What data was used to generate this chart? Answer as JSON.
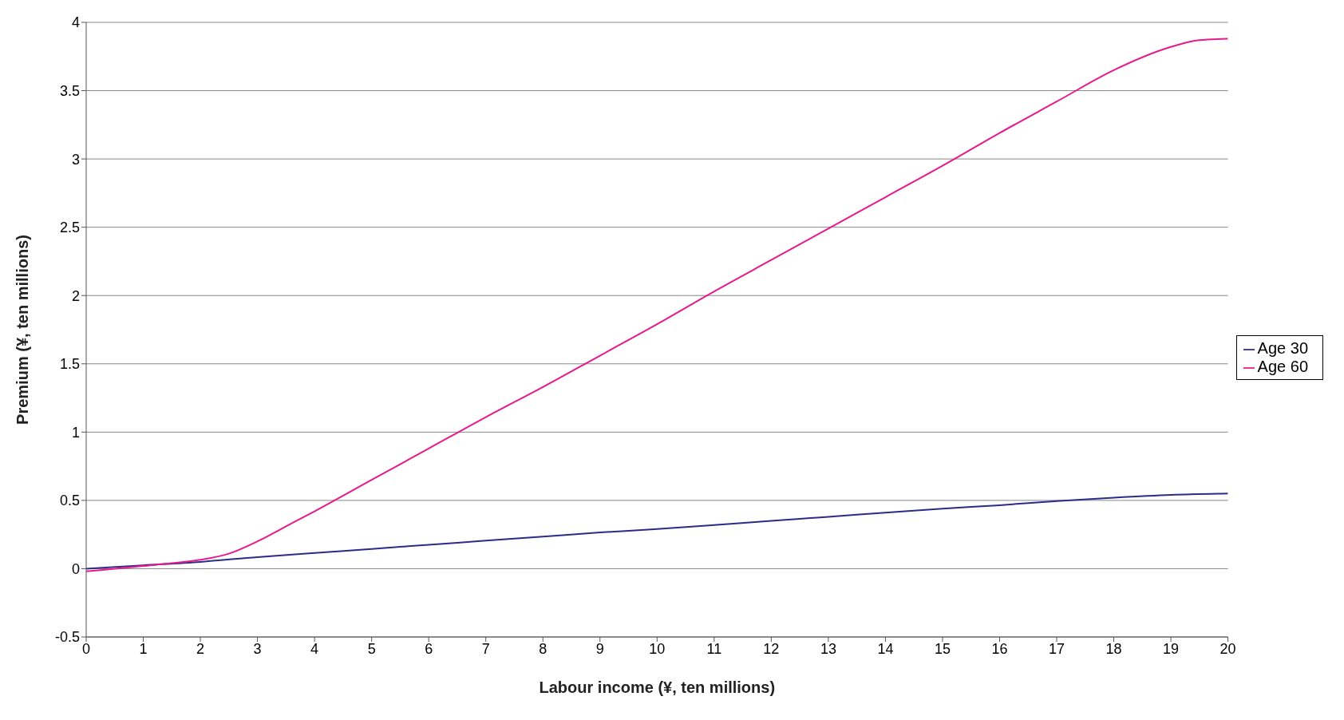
{
  "chart_data": {
    "type": "line",
    "xlabel": "Labour income (¥, ten millions)",
    "ylabel": "Premium (¥, ten millions)",
    "xlim": [
      0,
      20
    ],
    "xticks": [
      0,
      1,
      2,
      3,
      4,
      5,
      6,
      7,
      8,
      9,
      10,
      11,
      12,
      13,
      14,
      15,
      16,
      17,
      18,
      19,
      20
    ],
    "ylim": [
      -0.5,
      4
    ],
    "yticks": [
      -0.5,
      0,
      0.5,
      1,
      1.5,
      2,
      2.5,
      3,
      3.5,
      4
    ],
    "grid": "y",
    "legend": "right",
    "marker": "none",
    "line_style": "solid",
    "series": [
      {
        "name": "Age 30",
        "color": "#2b2b8a",
        "x": [
          0,
          1,
          2,
          3,
          4,
          5,
          6,
          7,
          8,
          9,
          10,
          11,
          12,
          13,
          14,
          15,
          16,
          17,
          18,
          19,
          20
        ],
        "values": [
          0,
          0.025,
          0.05,
          0.085,
          0.115,
          0.145,
          0.175,
          0.205,
          0.235,
          0.265,
          0.29,
          0.32,
          0.35,
          0.38,
          0.41,
          0.44,
          0.465,
          0.495,
          0.52,
          0.54,
          0.55
        ]
      },
      {
        "name": "Age 60",
        "color": "#e8198b",
        "x": [
          0,
          0.5,
          1,
          1.5,
          2,
          2.5,
          3,
          3.5,
          4,
          5,
          6,
          7,
          8,
          9,
          10,
          11,
          12,
          13,
          14,
          15,
          16,
          17,
          18,
          19,
          19.5,
          20
        ],
        "values": [
          -0.02,
          0,
          0.02,
          0.04,
          0.065,
          0.11,
          0.2,
          0.31,
          0.42,
          0.65,
          0.88,
          1.11,
          1.33,
          1.56,
          1.79,
          2.03,
          2.26,
          2.49,
          2.72,
          2.95,
          3.19,
          3.42,
          3.65,
          3.82,
          3.87,
          3.88
        ]
      }
    ]
  }
}
